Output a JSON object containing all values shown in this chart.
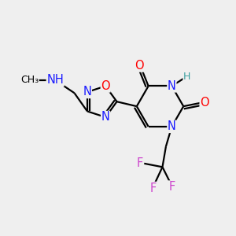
{
  "background_color": "#efefef",
  "colors": {
    "C": "#000000",
    "N": "#1a1aff",
    "O": "#ff0000",
    "F": "#cc44cc",
    "H": "#3a9f9f"
  },
  "bond_lw": 1.6,
  "font_size": 10.5,
  "font_size_small": 9.0,
  "figsize": [
    3.0,
    3.0
  ],
  "dpi": 100
}
